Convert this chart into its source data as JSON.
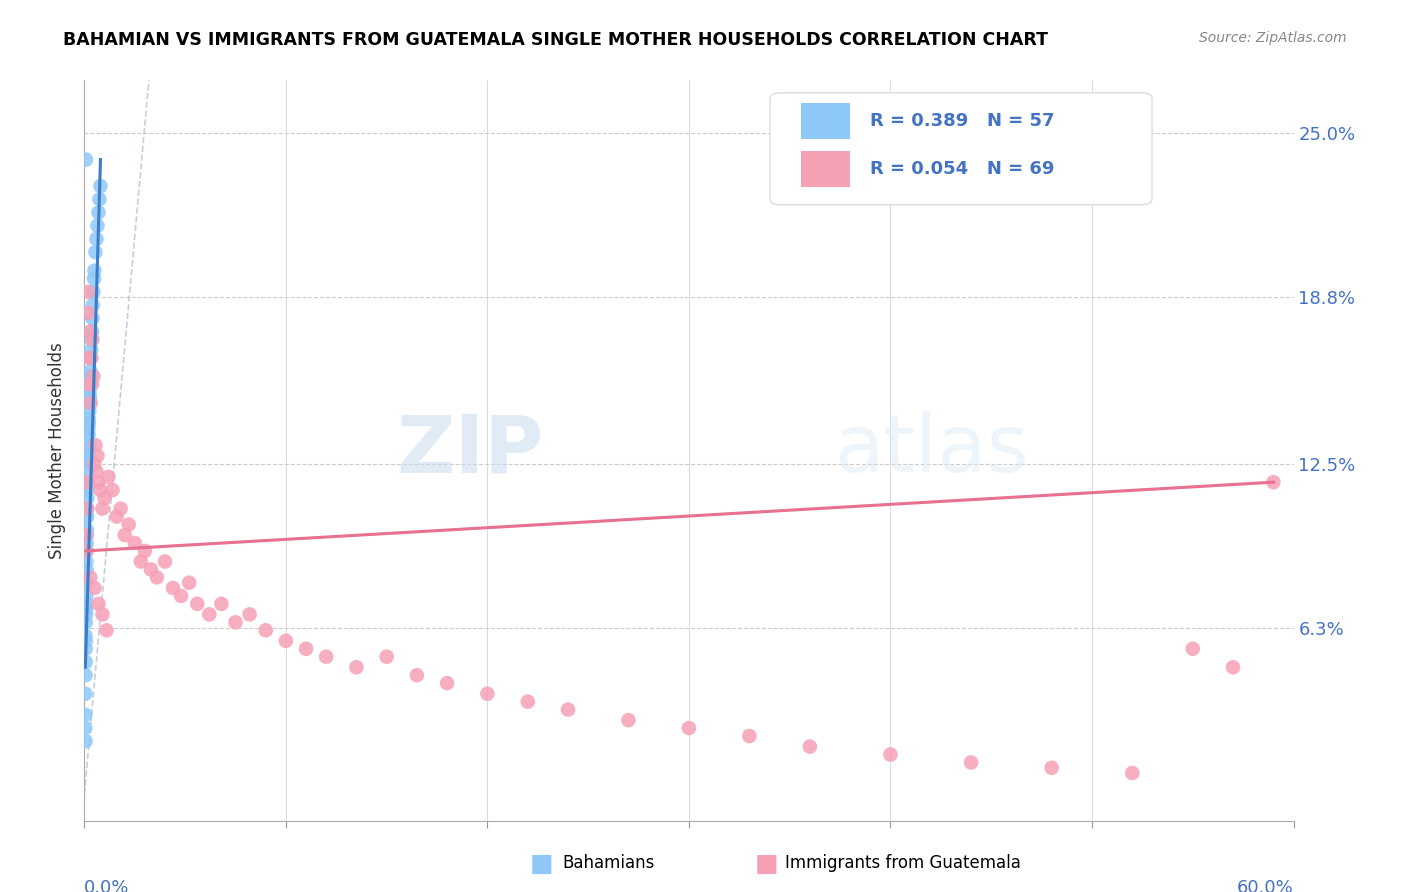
{
  "title": "BAHAMIAN VS IMMIGRANTS FROM GUATEMALA SINGLE MOTHER HOUSEHOLDS CORRELATION CHART",
  "source": "Source: ZipAtlas.com",
  "ylabel": "Single Mother Households",
  "y_tick_labels": [
    "6.3%",
    "12.5%",
    "18.8%",
    "25.0%"
  ],
  "y_tick_values": [
    0.063,
    0.125,
    0.188,
    0.25
  ],
  "xlim": [
    0.0,
    0.6
  ],
  "ylim": [
    -0.01,
    0.27
  ],
  "color_bahamian": "#8EC8F8",
  "color_guatemala": "#F5A0B5",
  "color_blue_text": "#4472C4",
  "color_trendline1": "#3B7DC8",
  "color_trendline2": "#E87090",
  "color_dashed": "#B0B8D0",
  "watermark_zip": "ZIP",
  "watermark_atlas": "atlas",
  "bahamian_x": [
    0.0005,
    0.0005,
    0.0005,
    0.0006,
    0.0006,
    0.0007,
    0.0007,
    0.0008,
    0.0008,
    0.0009,
    0.0009,
    0.001,
    0.001,
    0.001,
    0.0011,
    0.0011,
    0.0012,
    0.0012,
    0.0013,
    0.0013,
    0.0014,
    0.0014,
    0.0015,
    0.0015,
    0.0016,
    0.0017,
    0.0018,
    0.0019,
    0.002,
    0.002,
    0.0021,
    0.0022,
    0.0023,
    0.0024,
    0.0025,
    0.0026,
    0.0027,
    0.0028,
    0.003,
    0.0032,
    0.0034,
    0.0036,
    0.0038,
    0.004,
    0.0042,
    0.0045,
    0.0048,
    0.005,
    0.0055,
    0.006,
    0.0065,
    0.007,
    0.0075,
    0.008,
    0.0005,
    0.0006,
    0.0008
  ],
  "bahamian_y": [
    0.06,
    0.038,
    0.03,
    0.055,
    0.045,
    0.065,
    0.05,
    0.07,
    0.058,
    0.075,
    0.068,
    0.08,
    0.072,
    0.088,
    0.085,
    0.095,
    0.092,
    0.1,
    0.098,
    0.108,
    0.105,
    0.115,
    0.112,
    0.122,
    0.118,
    0.128,
    0.125,
    0.132,
    0.13,
    0.138,
    0.136,
    0.142,
    0.14,
    0.148,
    0.145,
    0.152,
    0.15,
    0.158,
    0.16,
    0.165,
    0.168,
    0.172,
    0.175,
    0.18,
    0.185,
    0.19,
    0.195,
    0.198,
    0.205,
    0.21,
    0.215,
    0.22,
    0.225,
    0.23,
    0.025,
    0.02,
    0.24
  ],
  "guatemala_x": [
    0.0008,
    0.001,
    0.0012,
    0.0015,
    0.0018,
    0.002,
    0.0025,
    0.0028,
    0.003,
    0.0032,
    0.0035,
    0.0038,
    0.004,
    0.0045,
    0.005,
    0.0055,
    0.006,
    0.0065,
    0.007,
    0.008,
    0.009,
    0.01,
    0.012,
    0.014,
    0.016,
    0.018,
    0.02,
    0.022,
    0.025,
    0.028,
    0.03,
    0.033,
    0.036,
    0.04,
    0.044,
    0.048,
    0.052,
    0.056,
    0.062,
    0.068,
    0.075,
    0.082,
    0.09,
    0.1,
    0.11,
    0.12,
    0.135,
    0.15,
    0.165,
    0.18,
    0.2,
    0.22,
    0.24,
    0.27,
    0.3,
    0.33,
    0.36,
    0.4,
    0.44,
    0.48,
    0.52,
    0.55,
    0.57,
    0.59,
    0.003,
    0.005,
    0.007,
    0.009,
    0.011
  ],
  "guatemala_y": [
    0.098,
    0.092,
    0.118,
    0.108,
    0.19,
    0.182,
    0.165,
    0.155,
    0.175,
    0.148,
    0.165,
    0.155,
    0.172,
    0.158,
    0.125,
    0.132,
    0.122,
    0.128,
    0.118,
    0.115,
    0.108,
    0.112,
    0.12,
    0.115,
    0.105,
    0.108,
    0.098,
    0.102,
    0.095,
    0.088,
    0.092,
    0.085,
    0.082,
    0.088,
    0.078,
    0.075,
    0.08,
    0.072,
    0.068,
    0.072,
    0.065,
    0.068,
    0.062,
    0.058,
    0.055,
    0.052,
    0.048,
    0.052,
    0.045,
    0.042,
    0.038,
    0.035,
    0.032,
    0.028,
    0.025,
    0.022,
    0.018,
    0.015,
    0.012,
    0.01,
    0.008,
    0.055,
    0.048,
    0.118,
    0.082,
    0.078,
    0.072,
    0.068,
    0.062
  ],
  "trendline1_x": [
    0.0005,
    0.008
  ],
  "trendline1_y": [
    0.048,
    0.24
  ],
  "trendline2_x": [
    0.0008,
    0.59
  ],
  "trendline2_y": [
    0.092,
    0.118
  ]
}
